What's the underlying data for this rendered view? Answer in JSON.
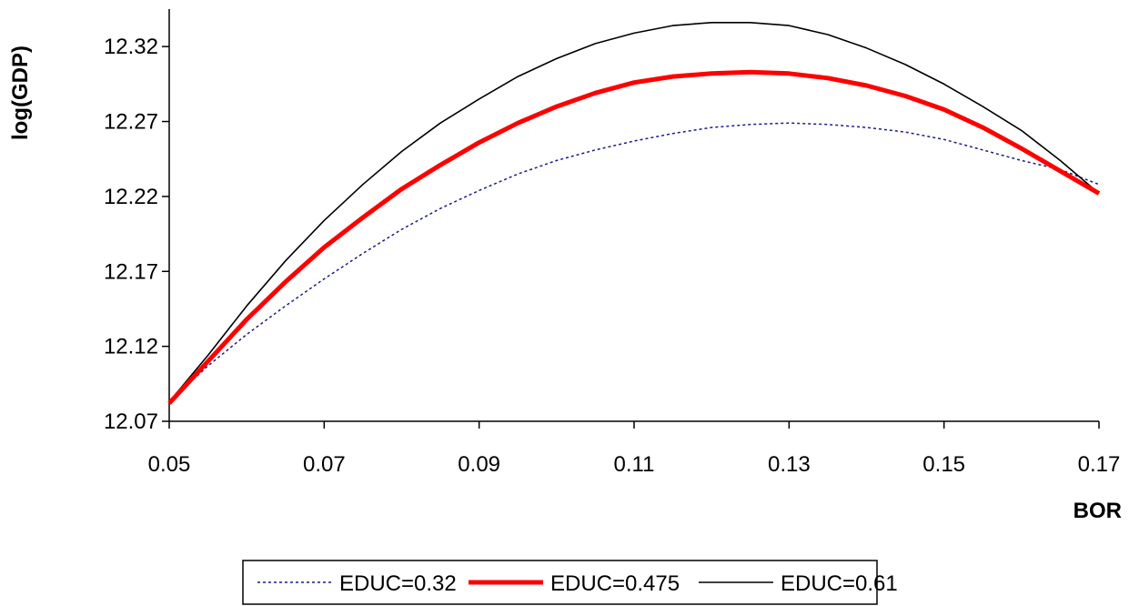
{
  "chart_data": {
    "type": "line",
    "xlabel": "BOR",
    "ylabel": "log(GDP)",
    "xlim": [
      0.05,
      0.17
    ],
    "ylim": [
      12.07,
      12.345
    ],
    "x_ticks": [
      "0.05",
      "0.07",
      "0.09",
      "0.11",
      "0.13",
      "0.15",
      "0.17"
    ],
    "y_ticks": [
      "12.07",
      "12.12",
      "12.17",
      "12.22",
      "12.27",
      "12.32"
    ],
    "grid": false,
    "legend_position": "bottom",
    "x": [
      0.05,
      0.055,
      0.06,
      0.065,
      0.07,
      0.075,
      0.08,
      0.085,
      0.09,
      0.095,
      0.1,
      0.105,
      0.11,
      0.115,
      0.12,
      0.125,
      0.13,
      0.135,
      0.14,
      0.145,
      0.15,
      0.155,
      0.16,
      0.165,
      0.17
    ],
    "series": [
      {
        "name": "EDUC=0.32",
        "color": "#1a1a8c",
        "style": "dotted",
        "values": [
          12.083,
          12.107,
          12.128,
          12.147,
          12.165,
          12.182,
          12.198,
          12.212,
          12.224,
          12.235,
          12.244,
          12.251,
          12.257,
          12.262,
          12.266,
          12.268,
          12.269,
          12.268,
          12.266,
          12.263,
          12.258,
          12.251,
          12.244,
          12.238,
          12.228
        ]
      },
      {
        "name": "EDUC=0.475",
        "color": "#ff0000",
        "style": "thick",
        "values": [
          12.082,
          12.11,
          12.138,
          12.163,
          12.186,
          12.206,
          12.225,
          12.241,
          12.256,
          12.269,
          12.28,
          12.289,
          12.296,
          12.3,
          12.302,
          12.303,
          12.302,
          12.299,
          12.294,
          12.287,
          12.278,
          12.266,
          12.252,
          12.237,
          12.222
        ]
      },
      {
        "name": "EDUC=0.61",
        "color": "#000000",
        "style": "solid",
        "values": [
          12.083,
          12.114,
          12.147,
          12.177,
          12.204,
          12.228,
          12.25,
          12.269,
          12.285,
          12.3,
          12.312,
          12.322,
          12.329,
          12.334,
          12.336,
          12.336,
          12.334,
          12.328,
          12.319,
          12.308,
          12.295,
          12.28,
          12.264,
          12.244,
          12.222
        ]
      }
    ]
  }
}
